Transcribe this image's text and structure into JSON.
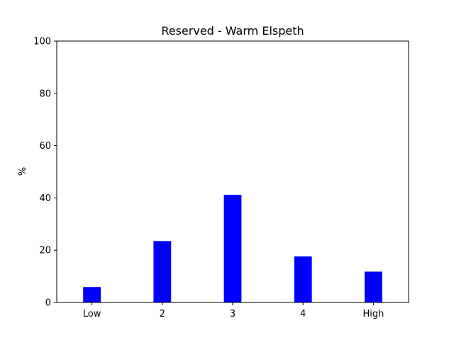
{
  "chart_data": {
    "type": "bar",
    "title": "Reserved - Warm Elspeth",
    "xlabel": "",
    "ylabel": "%",
    "categories": [
      "Low",
      "2",
      "3",
      "4",
      "High"
    ],
    "values": [
      5.9,
      23.5,
      41.2,
      17.6,
      11.8
    ],
    "ylim": [
      0,
      100
    ],
    "yticks": [
      0,
      20,
      40,
      60,
      80,
      100
    ],
    "grid": false,
    "bar_color": "#0000ff"
  }
}
